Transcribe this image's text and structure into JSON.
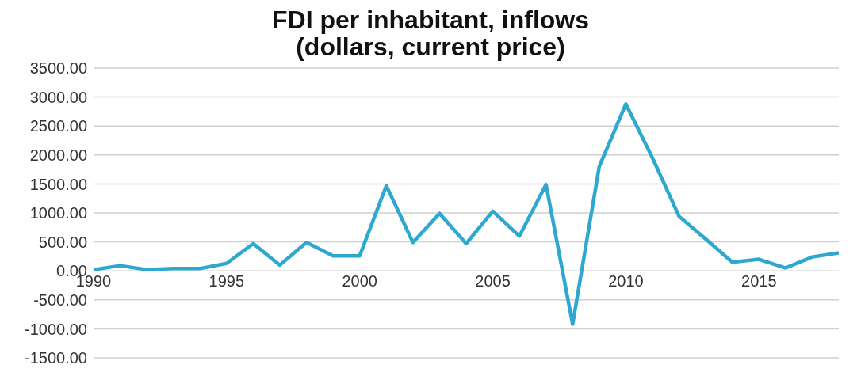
{
  "chart_data": {
    "type": "line",
    "title": "FDI per inhabitant, inflows\n(dollars, current price)",
    "x": [
      1990,
      1991,
      1992,
      1993,
      1994,
      1995,
      1996,
      1997,
      1998,
      1999,
      2000,
      2001,
      2002,
      2003,
      2004,
      2005,
      2006,
      2007,
      2008,
      2009,
      2010,
      2011,
      2012,
      2013,
      2014,
      2015,
      2016,
      2017,
      2018
    ],
    "series": [
      {
        "color": "#2ea8cf",
        "values": [
          20,
          90,
          20,
          40,
          40,
          130,
          470,
          100,
          490,
          260,
          260,
          1470,
          490,
          990,
          470,
          1030,
          600,
          1490,
          -920,
          1800,
          2880,
          1950,
          940,
          550,
          150,
          200,
          50,
          240,
          310
        ]
      }
    ],
    "xlim": [
      1990,
      2018
    ],
    "xticks": [
      1990,
      1995,
      2000,
      2005,
      2010,
      2015
    ],
    "ylim": [
      -1500,
      3500
    ],
    "yticks": [
      {
        "value": -1500,
        "label": "-1500.00"
      },
      {
        "value": -1000,
        "label": "-1000.00"
      },
      {
        "value": -500,
        "label": "-500.00"
      },
      {
        "value": 0,
        "label": "0.00"
      },
      {
        "value": 500,
        "label": "500.00"
      },
      {
        "value": 1000,
        "label": "1000.00"
      },
      {
        "value": 1500,
        "label": "1500.00"
      },
      {
        "value": 2000,
        "label": "2000.00"
      },
      {
        "value": 2500,
        "label": "2500.00"
      },
      {
        "value": 3000,
        "label": "3000.00"
      },
      {
        "value": 3500,
        "label": "3500.00"
      }
    ],
    "grid": "y",
    "marker": "none",
    "line_style": "solid"
  }
}
